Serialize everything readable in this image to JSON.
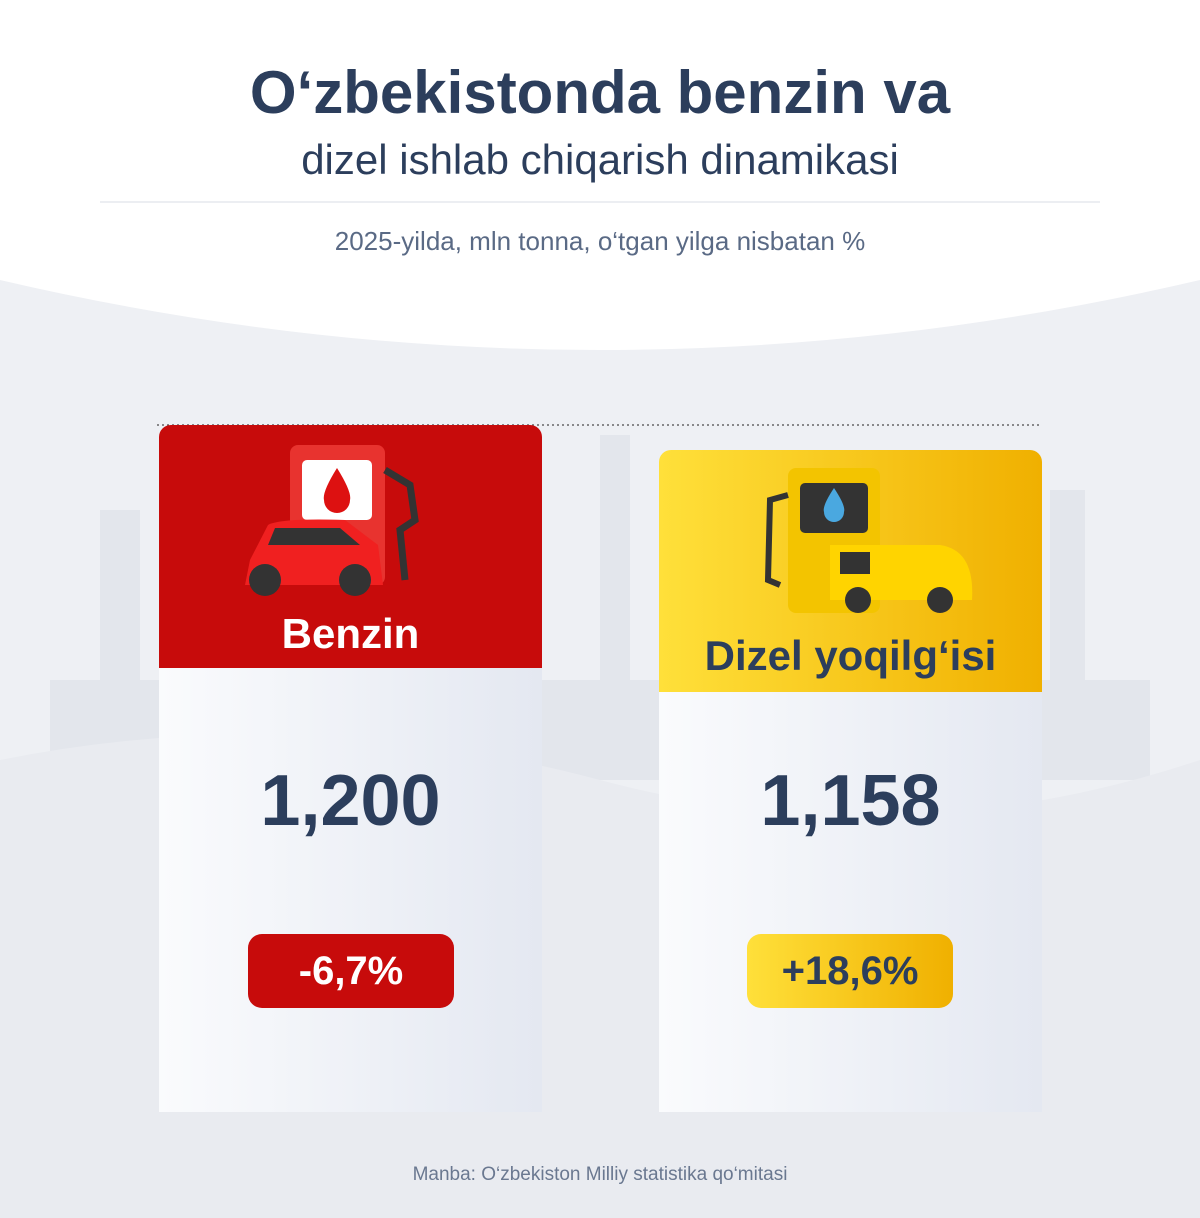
{
  "header": {
    "title_line1": "O‘zbekistonda benzin va",
    "title_line2": "dizel ishlab chiqarish dinamikasi",
    "subtitle": "2025-yilda, mln tonna, o‘tgan yilga nisbatan %"
  },
  "cards": [
    {
      "name": "Benzin",
      "value": "1,200",
      "change": "-6,7%"
    },
    {
      "name": "Dizel yoqilg‘isi",
      "value": "1,158",
      "change": "+18,6%"
    }
  ],
  "source": "Manba: O‘zbekiston Milliy statistika qo‘mitasi"
}
